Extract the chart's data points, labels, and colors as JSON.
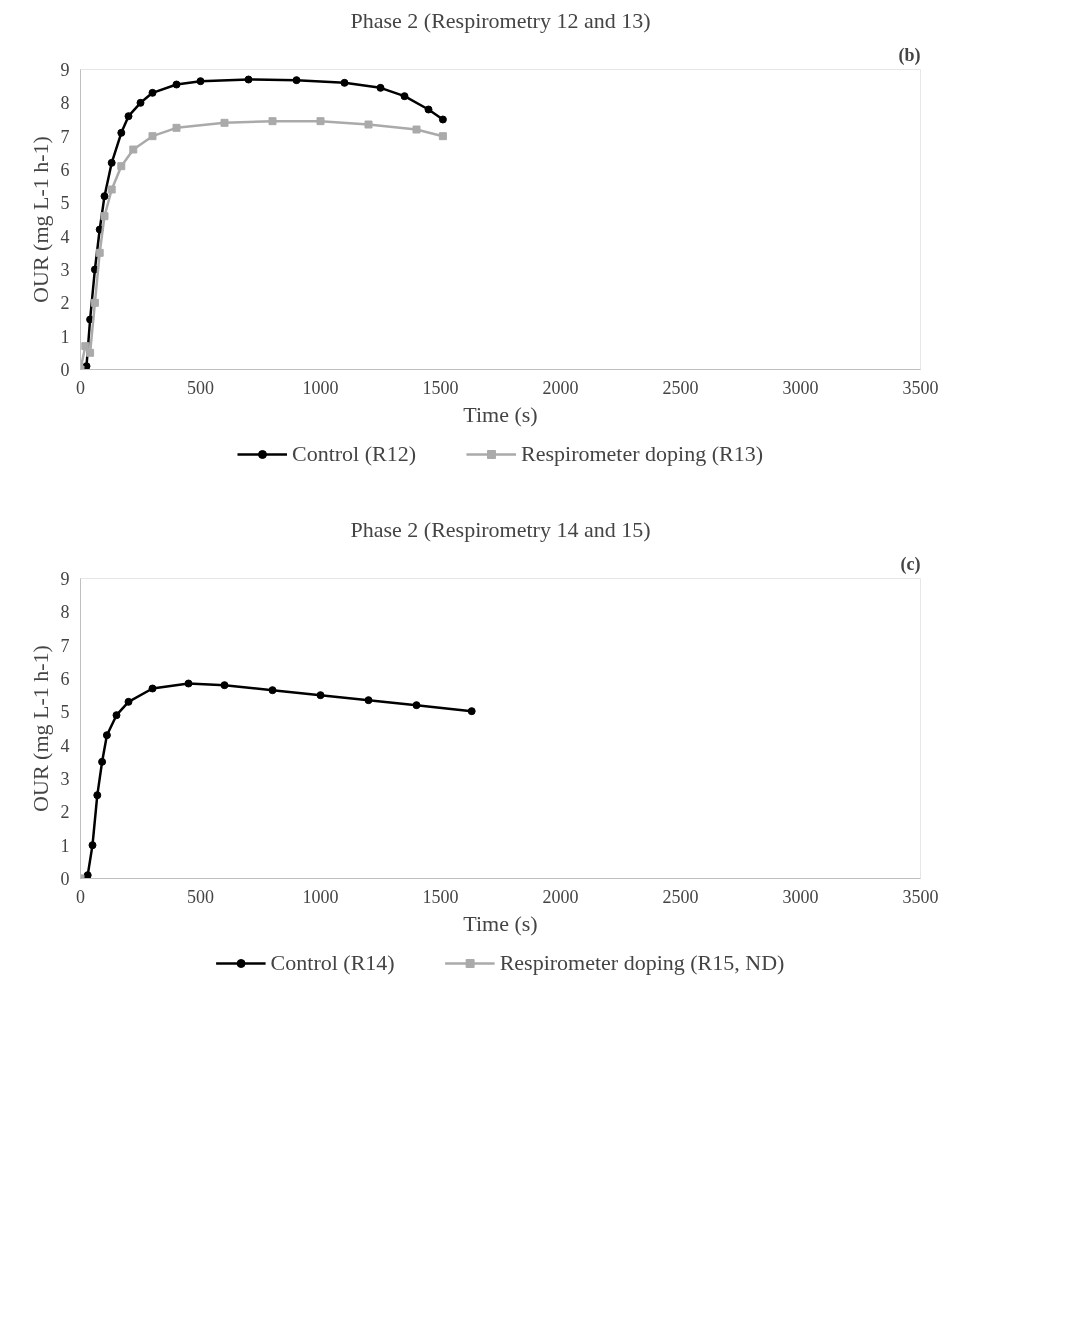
{
  "chart_data": [
    {
      "type": "line",
      "title": "Phase 2 (Respirometry 12 and 13)",
      "annotations": [
        "(b)"
      ],
      "xlabel": "Time (s)",
      "ylabel": "OUR (mg L-1 h-1)",
      "xlim": [
        0,
        3500
      ],
      "ylim": [
        0,
        9
      ],
      "xticks": [
        0,
        500,
        1000,
        1500,
        2000,
        2500,
        3000,
        3500
      ],
      "yticks": [
        0,
        1,
        2,
        3,
        4,
        5,
        6,
        7,
        8,
        9
      ],
      "grid": false,
      "legend": "bottom",
      "series": [
        {
          "name": "Control (R12)",
          "color": "#000000",
          "marker": "circle",
          "x": [
            0,
            25,
            40,
            60,
            80,
            100,
            130,
            170,
            200,
            250,
            300,
            400,
            500,
            700,
            900,
            1100,
            1250,
            1350,
            1450,
            1510
          ],
          "values": [
            0,
            0.1,
            1.5,
            3,
            4.2,
            5.2,
            6.2,
            7.1,
            7.6,
            8,
            8.3,
            8.55,
            8.65,
            8.7,
            8.68,
            8.6,
            8.45,
            8.2,
            7.8,
            7.5
          ]
        },
        {
          "name": "Respirometer doping (R13)",
          "color": "#aaaaaa",
          "marker": "square",
          "x": [
            0,
            20,
            40,
            60,
            80,
            100,
            130,
            170,
            220,
            300,
            400,
            600,
            800,
            1000,
            1200,
            1400,
            1510
          ],
          "values": [
            0,
            0.7,
            0.5,
            2,
            3.5,
            4.6,
            5.4,
            6.1,
            6.6,
            7,
            7.25,
            7.4,
            7.45,
            7.45,
            7.35,
            7.2,
            7.0
          ]
        }
      ]
    },
    {
      "type": "line",
      "title": "Phase 2 (Respirometry 14 and 15)",
      "annotations": [
        "(c)"
      ],
      "xlabel": "Time (s)",
      "ylabel": "OUR (mg L-1 h-1)",
      "xlim": [
        0,
        3500
      ],
      "ylim": [
        0,
        9
      ],
      "xticks": [
        0,
        500,
        1000,
        1500,
        2000,
        2500,
        3000,
        3500
      ],
      "yticks": [
        0,
        1,
        2,
        3,
        4,
        5,
        6,
        7,
        8,
        9
      ],
      "grid": false,
      "legend": "bottom",
      "series": [
        {
          "name": "Control (R14)",
          "color": "#000000",
          "marker": "circle",
          "x": [
            0,
            30,
            50,
            70,
            90,
            110,
            150,
            200,
            300,
            450,
            600,
            800,
            1000,
            1200,
            1400,
            1630
          ],
          "values": [
            0,
            0.1,
            1,
            2.5,
            3.5,
            4.3,
            4.9,
            5.3,
            5.7,
            5.85,
            5.8,
            5.65,
            5.5,
            5.35,
            5.2,
            5.02
          ]
        },
        {
          "name": "Respirometer doping (R15, ND)",
          "color": "#aaaaaa",
          "marker": "square",
          "x": [
            0
          ],
          "values": [
            0
          ]
        }
      ]
    }
  ]
}
